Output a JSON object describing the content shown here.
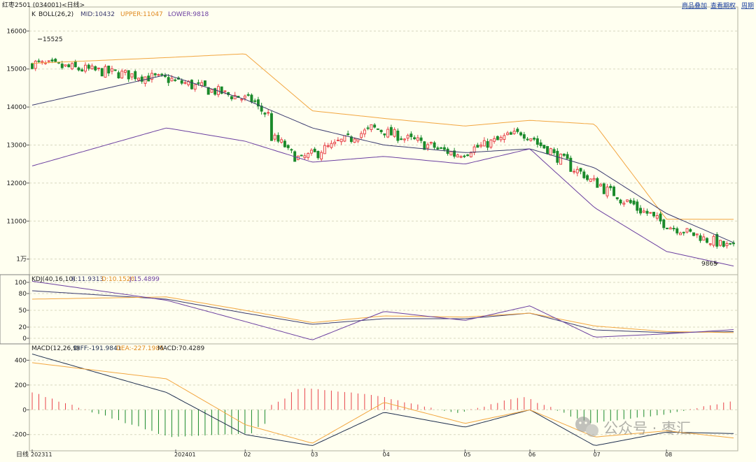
{
  "colors": {
    "background": "#FFFFF0",
    "up": "#E8434A",
    "down": "#1B8A2B",
    "mid": "#3A3A6E",
    "upper": "#F2A640",
    "lower": "#6B3FA0",
    "k": "#3A3A6E",
    "d": "#F2A640",
    "j": "#6B3FA0",
    "diff": "#1F2F4F",
    "dea": "#F2A640",
    "grid": "#D8D8C0",
    "text": "#202020"
  },
  "header": {
    "title": "红枣2501 (034001)<日线>",
    "links": [
      "商品叠加",
      "查看期权",
      "周期"
    ]
  },
  "main_legend": {
    "k": "K",
    "boll": "BOLL(26,2)",
    "mid": "MID:10432",
    "upper": "UPPER:11047",
    "lower": "LOWER:9818"
  },
  "kdj_legend": {
    "name": "KDJ(40,16,10)",
    "k": "K:11.9313",
    "d": "D:10.1520",
    "j": "J:15.4899"
  },
  "macd_legend": {
    "name": "MACD(12,26,9)",
    "diff": "DIFF:-191.9841",
    "dea": "DEA:-227.1985",
    "macd": "MACD:70.4289"
  },
  "annotations": {
    "high": "15525",
    "low": "9865"
  },
  "axis": {
    "main_ticks": [
      "16000",
      "15000",
      "14000",
      "13000",
      "12000",
      "11000",
      "1万"
    ],
    "kdj_ticks": [
      "100",
      "80",
      "50",
      "20",
      "0"
    ],
    "macd_ticks": [
      "400",
      "200",
      "0",
      "-200"
    ],
    "x_ticks": [
      "202311",
      "202401",
      "02",
      "03",
      "04",
      "05",
      "06",
      "07",
      "08"
    ],
    "corner": "日线"
  },
  "watermark": {
    "icon": "wechat-icon",
    "text": "公众号 · 枣汇"
  },
  "chart_data": [
    {
      "type": "candlestick",
      "title": "红枣2501 (034001)<日线>",
      "ylim": [
        9700,
        16300
      ],
      "ticks": [
        16000,
        15000,
        14000,
        13000,
        12000,
        11000,
        10000
      ],
      "annotations": [
        {
          "label": "15525",
          "x": "2023-11-03",
          "y": 15525
        },
        {
          "label": "9865",
          "x": "2024-08-27",
          "y": 9865
        }
      ],
      "dates": [
        "2023-11-01",
        "2023-12-29",
        "2024-02-01",
        "2024-03-01",
        "2024-04-01",
        "2024-05-06",
        "2024-06-03",
        "2024-07-01",
        "2024-08-01",
        "2024-08-30"
      ],
      "close_path": [
        15150,
        14720,
        14180,
        12600,
        13450,
        12750,
        13350,
        12100,
        10950,
        10280
      ],
      "boll": {
        "mid": [
          14050,
          14850,
          14200,
          13450,
          13000,
          12800,
          12900,
          12400,
          11200,
          10432
        ],
        "upper": [
          15150,
          15300,
          15400,
          13900,
          13700,
          13500,
          13650,
          13550,
          11050,
          11047
        ],
        "lower": [
          12450,
          13450,
          13100,
          12550,
          12700,
          12500,
          12900,
          11350,
          10200,
          9818
        ],
        "last": {
          "mid": 10432,
          "upper": 11047,
          "lower": 9818
        }
      }
    },
    {
      "type": "line",
      "title": "KDJ(40,16,10)",
      "ylim": [
        -10,
        110
      ],
      "ticks": [
        100,
        80,
        50,
        20,
        0
      ],
      "x": [
        "2023-11-01",
        "2023-12-29",
        "2024-02-01",
        "2024-03-01",
        "2024-04-01",
        "2024-05-06",
        "2024-06-03",
        "2024-07-01",
        "2024-08-01",
        "2024-08-30"
      ],
      "series": [
        {
          "name": "K",
          "values": [
            85,
            70,
            45,
            25,
            35,
            35,
            45,
            15,
            10,
            11.93
          ]
        },
        {
          "name": "D",
          "values": [
            70,
            74,
            50,
            28,
            40,
            38,
            45,
            22,
            12,
            10.15
          ]
        },
        {
          "name": "J",
          "values": [
            102,
            68,
            30,
            -3,
            48,
            32,
            58,
            2,
            8,
            15.49
          ]
        }
      ]
    },
    {
      "type": "bar+line",
      "title": "MACD(12,26,9)",
      "ylim": [
        -320,
        470
      ],
      "ticks": [
        400,
        200,
        0,
        -200
      ],
      "x": [
        "2023-11-01",
        "2023-12-29",
        "2024-02-01",
        "2024-03-01",
        "2024-04-01",
        "2024-05-06",
        "2024-06-03",
        "2024-07-01",
        "2024-08-01",
        "2024-08-30"
      ],
      "series": [
        {
          "name": "DIFF",
          "values": [
            450,
            140,
            -200,
            -290,
            -20,
            -140,
            0,
            -290,
            -180,
            -191.98
          ]
        },
        {
          "name": "DEA",
          "values": [
            380,
            250,
            -120,
            -270,
            60,
            -110,
            0,
            -220,
            -170,
            -227.2
          ]
        },
        {
          "name": "MACD",
          "values": [
            140,
            -220,
            -190,
            180,
            120,
            -30,
            110,
            -110,
            -40,
            70.43
          ]
        }
      ]
    }
  ]
}
